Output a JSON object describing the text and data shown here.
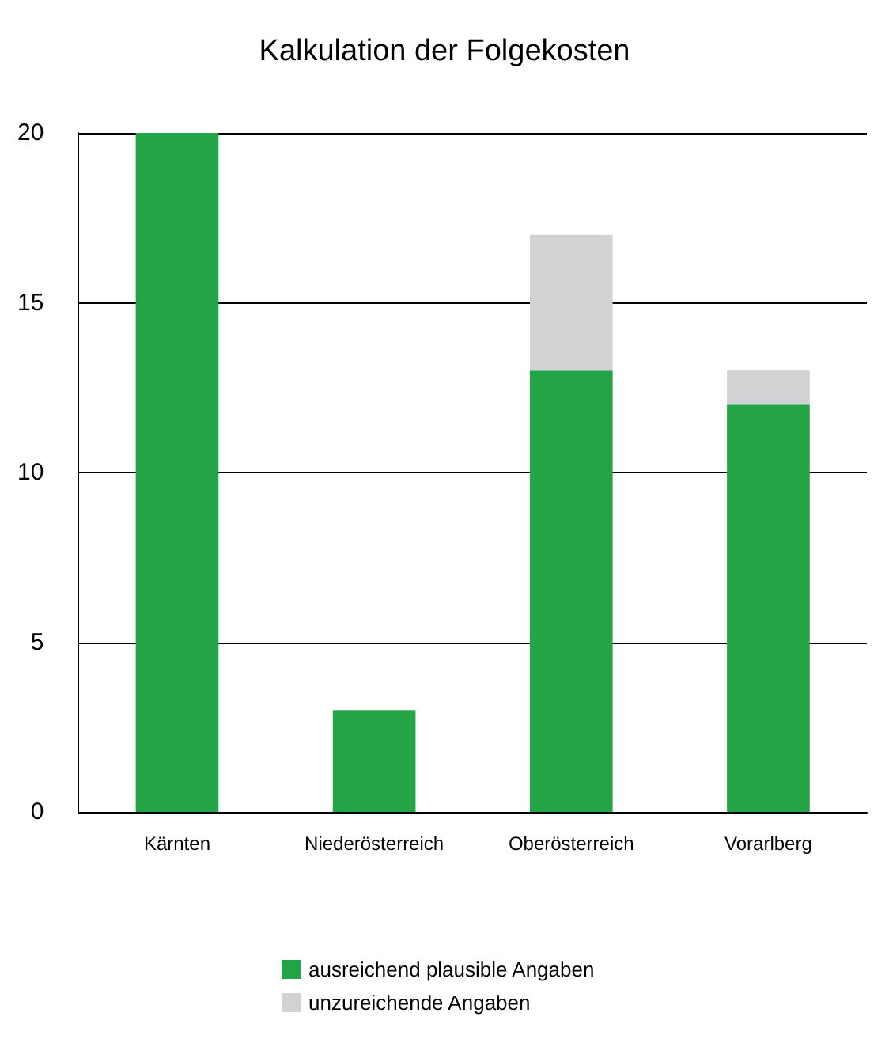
{
  "chart_data": {
    "type": "bar",
    "title": "Kalkulation der Folgekosten",
    "categories": [
      "Kärnten",
      "Niederösterreich",
      "Oberösterreich",
      "Vorarlberg"
    ],
    "series": [
      {
        "name": "ausreichend plausible Angaben",
        "color": "#22a447",
        "values": [
          20,
          3,
          13,
          12
        ]
      },
      {
        "name": "unzureichende Angaben",
        "color": "#d1d2d4",
        "values": [
          0,
          0,
          4,
          1
        ]
      }
    ],
    "stacked": true,
    "ylim": [
      0,
      20
    ],
    "yticks": [
      0,
      5,
      10,
      15,
      20
    ],
    "grid": "y",
    "legend": "bottom"
  }
}
